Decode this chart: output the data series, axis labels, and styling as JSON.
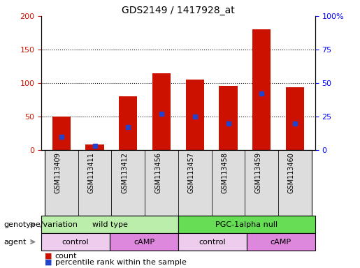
{
  "title": "GDS2149 / 1417928_at",
  "samples": [
    "GSM113409",
    "GSM113411",
    "GSM113412",
    "GSM113456",
    "GSM113457",
    "GSM113458",
    "GSM113459",
    "GSM113460"
  ],
  "counts": [
    50,
    8,
    80,
    115,
    105,
    96,
    180,
    94
  ],
  "percentiles": [
    10,
    3,
    17,
    27,
    25,
    20,
    42,
    20
  ],
  "ylim_left": [
    0,
    200
  ],
  "ylim_right": [
    0,
    100
  ],
  "yticks_left": [
    0,
    50,
    100,
    150,
    200
  ],
  "yticks_right": [
    0,
    25,
    50,
    75,
    100
  ],
  "yticklabels_left": [
    "0",
    "50",
    "100",
    "150",
    "200"
  ],
  "yticklabels_right": [
    "0",
    "25",
    "50",
    "75",
    "100%"
  ],
  "bar_color": "#cc1100",
  "percentile_color": "#2244cc",
  "background_color": "#ffffff",
  "sample_bg_color": "#dddddd",
  "genotype_groups": [
    {
      "label": "wild type",
      "start": 0,
      "end": 4,
      "color": "#bbeeaa"
    },
    {
      "label": "PGC-1alpha null",
      "start": 4,
      "end": 8,
      "color": "#66dd55"
    }
  ],
  "agent_groups": [
    {
      "label": "control",
      "start": 0,
      "end": 2,
      "color": "#eeccee"
    },
    {
      "label": "cAMP",
      "start": 2,
      "end": 4,
      "color": "#dd88dd"
    },
    {
      "label": "control",
      "start": 4,
      "end": 6,
      "color": "#eeccee"
    },
    {
      "label": "cAMP",
      "start": 6,
      "end": 8,
      "color": "#dd88dd"
    }
  ],
  "title_fontsize": 10,
  "tick_fontsize": 8,
  "annotation_fontsize": 8,
  "label_fontsize": 8,
  "sample_fontsize": 7
}
